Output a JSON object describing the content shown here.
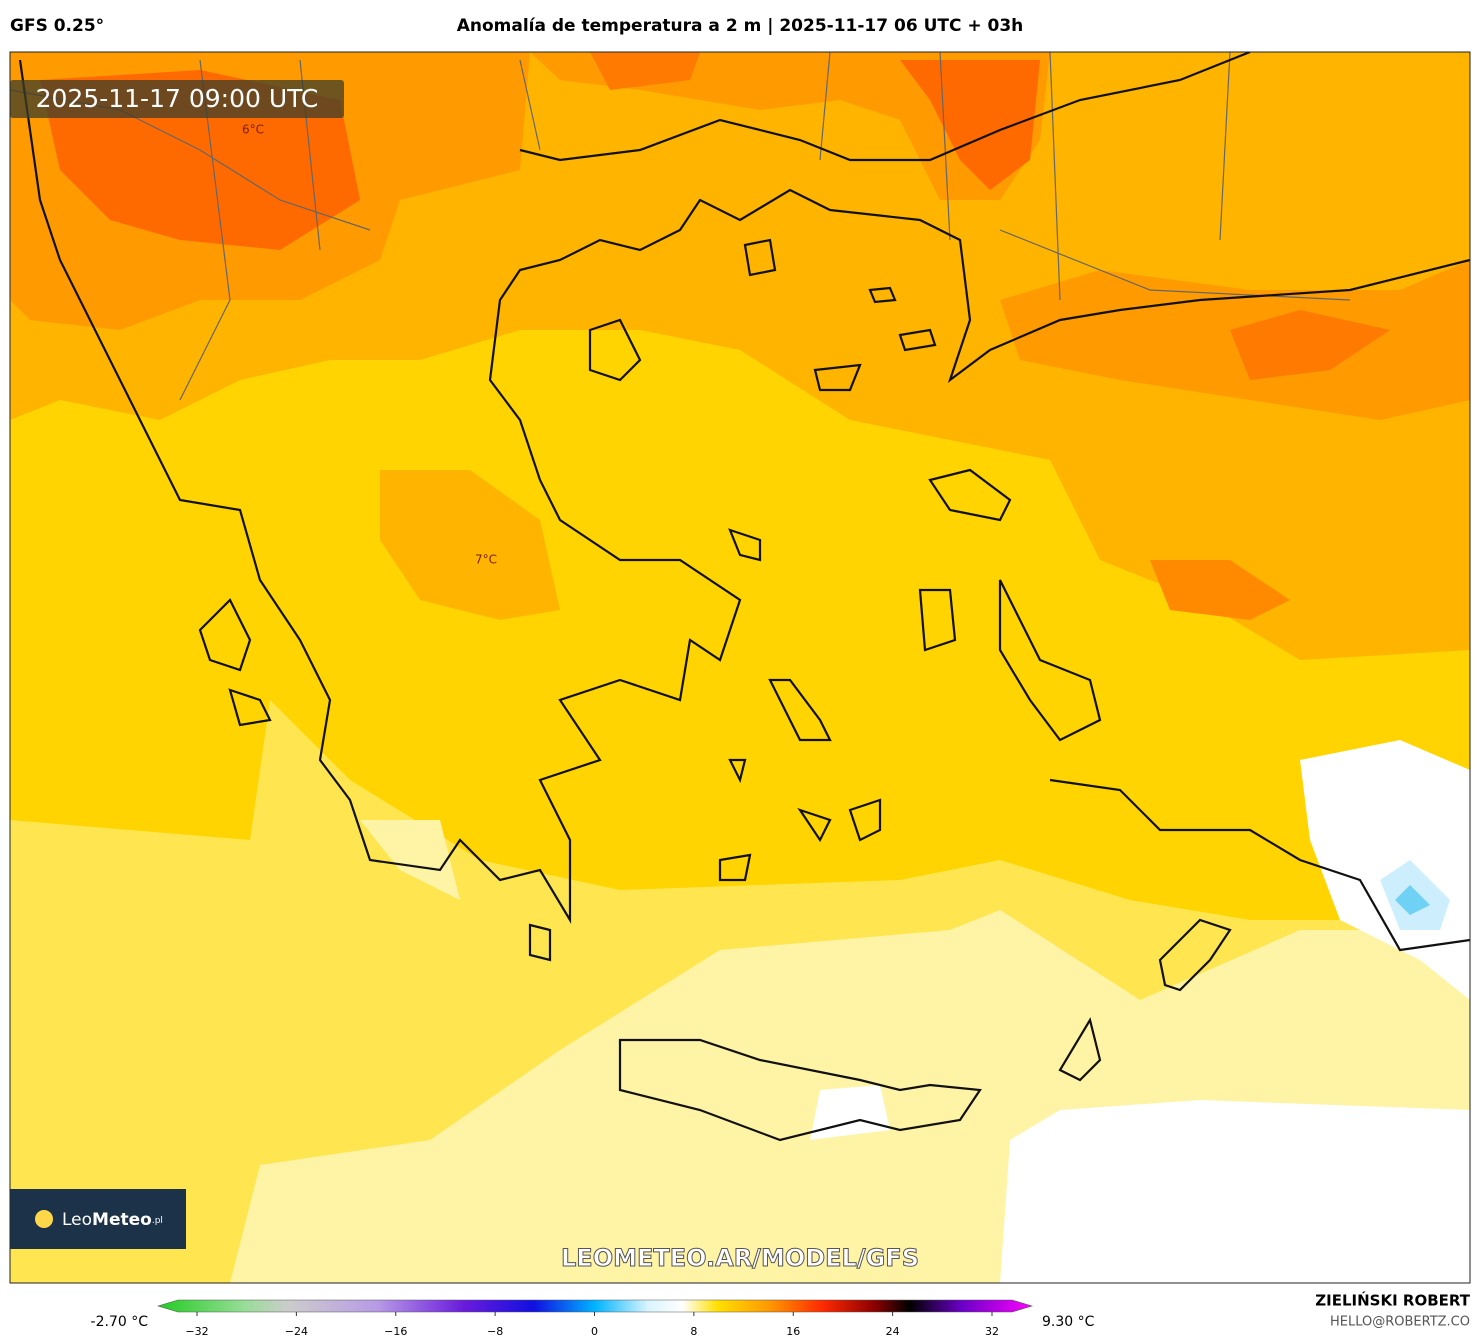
{
  "header": {
    "model": "GFS 0.25°",
    "title": "Anomalía de temperatura a 2 m | 2025-11-17 06 UTC + 03h"
  },
  "map": {
    "timestamp": "2025-11-17 09:00 UTC",
    "labels": [
      "6°C",
      "7°C"
    ],
    "logo": [
      "Leo",
      "Meteo",
      ".pl"
    ],
    "watermark": "LEOMETEO.AR/MODEL/GFS"
  },
  "colorbar": {
    "min_label": "-2.70 °C",
    "max_label": "9.30 °C",
    "ticks": [
      {
        "value": -32,
        "label": "−32"
      },
      {
        "value": -24,
        "label": "−24"
      },
      {
        "value": -16,
        "label": "−16"
      },
      {
        "value": -8,
        "label": "−8"
      },
      0,
      8,
      16,
      24,
      32
    ]
  },
  "footer": {
    "author": "ZIELIŃSKI ROBERT",
    "email": "HELLO@ROBERTZ.CO"
  }
}
